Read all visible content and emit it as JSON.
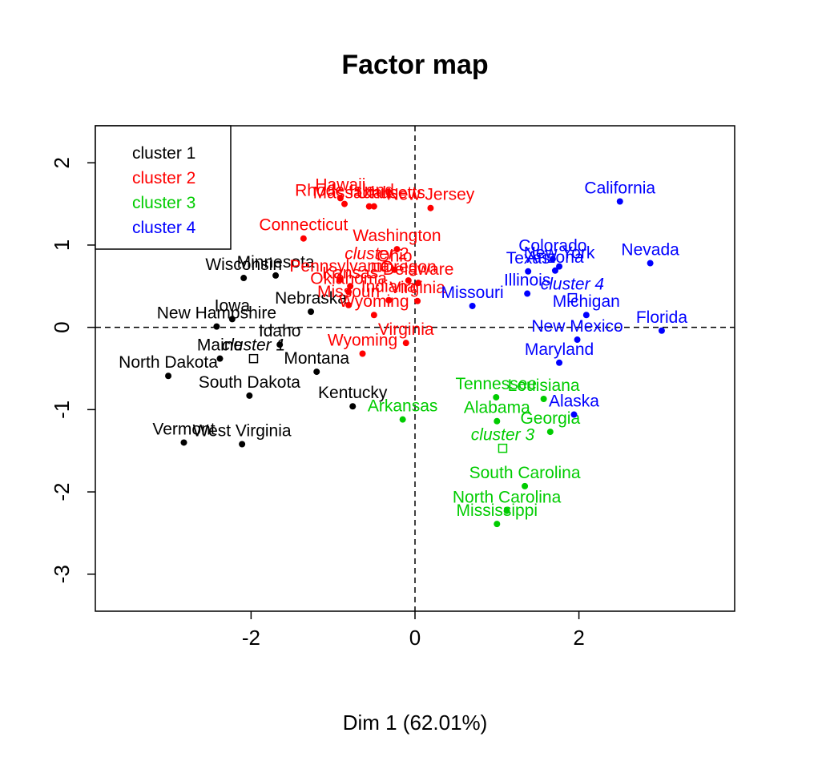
{
  "chart_data": {
    "type": "scatter",
    "title": "Factor map",
    "xlabel": "Dim 1 (62.01%)",
    "ylabel": "",
    "xlim": [
      -3.9,
      3.9
    ],
    "ylim": [
      -3.45,
      2.45
    ],
    "x_ticks": [
      -2,
      0,
      2
    ],
    "y_ticks": [
      -3,
      -2,
      -1,
      0,
      1,
      2
    ],
    "x_tick_labels": [
      "-2",
      "0",
      "2"
    ],
    "y_tick_labels": [
      "-3",
      "-2",
      "-1",
      "0",
      "1",
      "2"
    ],
    "reference_lines": {
      "x": 0,
      "y": 0,
      "style": "dashed"
    },
    "grid": false,
    "legend_position": "top-left",
    "series": [
      {
        "name": "cluster 1",
        "color": "#000000",
        "center": {
          "label": "cluster 1",
          "x": -1.97,
          "y": -0.38
        },
        "points": [
          {
            "label": "Minnesota",
            "x": -1.7,
            "y": 0.63
          },
          {
            "label": "Wisconsin",
            "x": -2.09,
            "y": 0.6
          },
          {
            "label": "Nebraska",
            "x": -1.27,
            "y": 0.19
          },
          {
            "label": "Iowa",
            "x": -2.23,
            "y": 0.1
          },
          {
            "label": "New Hampshire",
            "x": -2.42,
            "y": 0.01
          },
          {
            "label": "Idaho",
            "x": -1.65,
            "y": -0.21
          },
          {
            "label": "Maine",
            "x": -2.38,
            "y": -0.38
          },
          {
            "label": "Montana",
            "x": -1.2,
            "y": -0.54
          },
          {
            "label": "North Dakota",
            "x": -3.01,
            "y": -0.59
          },
          {
            "label": "South Dakota",
            "x": -2.02,
            "y": -0.83
          },
          {
            "label": "Kentucky",
            "x": -0.76,
            "y": -0.96
          },
          {
            "label": "Vermont",
            "x": -2.82,
            "y": -1.4
          },
          {
            "label": "West Virginia",
            "x": -2.11,
            "y": -1.42
          }
        ]
      },
      {
        "name": "cluster 2",
        "color": "#ff0000",
        "center": {
          "label": "cluster 2",
          "x": -0.47,
          "y": 0.73
        },
        "points": [
          {
            "label": "Hawaii",
            "x": -0.91,
            "y": 1.57
          },
          {
            "label": "Rhode Island",
            "x": -0.86,
            "y": 1.5
          },
          {
            "label": "Massachusetts",
            "x": -0.56,
            "y": 1.47
          },
          {
            "label": "Utah",
            "x": -0.5,
            "y": 1.47
          },
          {
            "label": "New Jersey",
            "x": 0.19,
            "y": 1.45
          },
          {
            "label": "Connecticut",
            "x": -1.36,
            "y": 1.08
          },
          {
            "label": "Washington",
            "x": -0.22,
            "y": 0.95
          },
          {
            "label": "Ohio",
            "x": -0.25,
            "y": 0.7
          },
          {
            "label": "Pennsylvania",
            "x": -0.92,
            "y": 0.58
          },
          {
            "label": "Oregon",
            "x": -0.08,
            "y": 0.57
          },
          {
            "label": "Delaware",
            "x": 0.04,
            "y": 0.54
          },
          {
            "label": "Kansas",
            "x": -0.79,
            "y": 0.5
          },
          {
            "label": "Oklahoma",
            "x": -0.81,
            "y": 0.43
          },
          {
            "label": "Indiana",
            "x": -0.32,
            "y": 0.33
          },
          {
            "label": "Virginia",
            "x": 0.03,
            "y": 0.32
          },
          {
            "label": "Wyoming",
            "x": -0.5,
            "y": 0.15
          },
          {
            "label": "Missouri",
            "x": -0.81,
            "y": 0.27
          },
          {
            "label": "Virginia",
            "x": -0.11,
            "y": -0.19
          },
          {
            "label": "Wyoming",
            "x": -0.64,
            "y": -0.32
          }
        ]
      },
      {
        "name": "cluster 3",
        "color": "#00cc00",
        "center": {
          "label": "cluster 3",
          "x": 1.07,
          "y": -1.47
        },
        "points": [
          {
            "label": "Tennessee",
            "x": 0.99,
            "y": -0.85
          },
          {
            "label": "Louisiana",
            "x": 1.57,
            "y": -0.87
          },
          {
            "label": "Alabama",
            "x": 1.0,
            "y": -1.14
          },
          {
            "label": "Arkansas",
            "x": -0.15,
            "y": -1.12
          },
          {
            "label": "Georgia",
            "x": 1.65,
            "y": -1.27
          },
          {
            "label": "South Carolina",
            "x": 1.34,
            "y": -1.93
          },
          {
            "label": "North Carolina",
            "x": 1.12,
            "y": -2.23
          },
          {
            "label": "Mississippi",
            "x": 1.0,
            "y": -2.39
          }
        ]
      },
      {
        "name": "cluster 4",
        "color": "#0000ff",
        "center": {
          "label": "cluster 4",
          "x": 1.92,
          "y": 0.36
        },
        "points": [
          {
            "label": "California",
            "x": 2.5,
            "y": 1.53
          },
          {
            "label": "Nevada",
            "x": 2.87,
            "y": 0.78
          },
          {
            "label": "Colorado",
            "x": 1.68,
            "y": 0.83
          },
          {
            "label": "New York",
            "x": 1.76,
            "y": 0.74
          },
          {
            "label": "Arizona",
            "x": 1.71,
            "y": 0.69
          },
          {
            "label": "Illinois",
            "x": 1.37,
            "y": 0.41
          },
          {
            "label": "Texas",
            "x": 1.38,
            "y": 0.68
          },
          {
            "label": "Michigan",
            "x": 2.09,
            "y": 0.15
          },
          {
            "label": "Missouri",
            "x": 0.7,
            "y": 0.26
          },
          {
            "label": "Florida",
            "x": 3.01,
            "y": -0.04
          },
          {
            "label": "New Mexico",
            "x": 1.98,
            "y": -0.15
          },
          {
            "label": "Maryland",
            "x": 1.76,
            "y": -0.43
          },
          {
            "label": "Alaska",
            "x": 1.94,
            "y": -1.06
          }
        ]
      }
    ]
  }
}
